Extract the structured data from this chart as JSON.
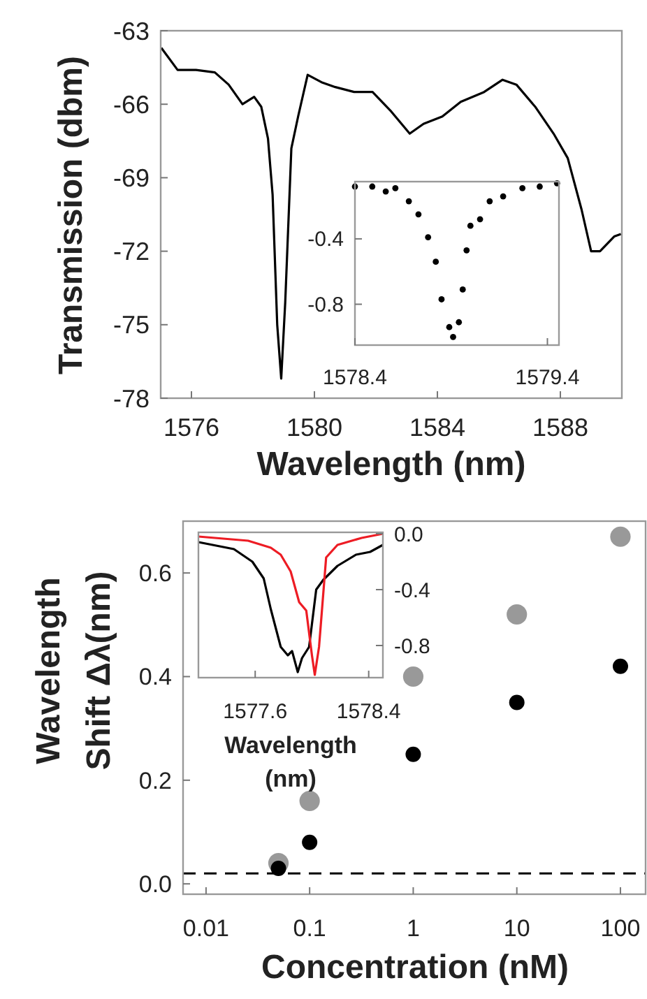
{
  "chart_data": [
    {
      "type": "line",
      "xlabel": "Wavelength (nm)",
      "ylabel": "Transmission (dbm)",
      "xlim": [
        1575,
        1590
      ],
      "ylim": [
        -78,
        -63
      ],
      "xticks": [
        1576,
        1580,
        1584,
        1588
      ],
      "yticks": [
        -63,
        -66,
        -69,
        -72,
        -75,
        -78
      ],
      "series": [
        {
          "color": "#000000",
          "x": [
            1575.02,
            1575.55,
            1576.15,
            1576.76,
            1577.21,
            1577.66,
            1578.04,
            1578.27,
            1578.49,
            1578.64,
            1578.79,
            1578.92,
            1579.05,
            1579.25,
            1579.47,
            1579.78,
            1580.23,
            1580.68,
            1581.29,
            1581.89,
            1582.5,
            1583.1,
            1583.55,
            1584.16,
            1584.76,
            1585.52,
            1586.12,
            1586.57,
            1587.18,
            1587.78,
            1588.24,
            1588.69,
            1589.0,
            1589.29,
            1589.75,
            1589.97
          ],
          "values": [
            -63.7,
            -64.6,
            -64.6,
            -64.7,
            -65.2,
            -66.0,
            -65.7,
            -66.1,
            -67.4,
            -69.7,
            -75.0,
            -77.2,
            -74.1,
            -67.8,
            -66.5,
            -64.8,
            -65.1,
            -65.3,
            -65.5,
            -65.5,
            -66.3,
            -67.2,
            -66.8,
            -66.5,
            -65.9,
            -65.5,
            -65.0,
            -65.2,
            -66.1,
            -67.2,
            -68.2,
            -70.3,
            -72.0,
            -72.0,
            -71.4,
            -71.3
          ]
        }
      ]
    },
    {
      "type": "scatter",
      "marker": "circle",
      "xlim": [
        1578.4,
        1579.46
      ],
      "ylim": [
        -1.05,
        -0.05
      ],
      "xticks": [
        1578.4,
        1579.4
      ],
      "yticks": [
        -0.4,
        -0.8
      ],
      "series": [
        {
          "color": "#000000",
          "x": [
            1578.4,
            1578.49,
            1578.56,
            1578.61,
            1578.68,
            1578.73,
            1578.78,
            1578.82,
            1578.85,
            1578.89,
            1578.91,
            1578.94,
            1578.96,
            1578.98,
            1579.0,
            1579.05,
            1579.1,
            1579.17,
            1579.27,
            1579.36,
            1579.45
          ],
          "values": [
            -0.08,
            -0.08,
            -0.11,
            -0.09,
            -0.17,
            -0.25,
            -0.39,
            -0.54,
            -0.77,
            -0.94,
            -1.0,
            -0.91,
            -0.71,
            -0.47,
            -0.32,
            -0.28,
            -0.17,
            -0.14,
            -0.09,
            -0.08,
            -0.06
          ]
        }
      ]
    },
    {
      "type": "scatter",
      "marker": "circle",
      "log": "x",
      "xlabel": "Concentration (nM)",
      "ylabel": "Wavelength Shift Δλ(nm)",
      "xlim": [
        0.006,
        175
      ],
      "ylim": [
        -0.02,
        0.7
      ],
      "xticks": [
        0.01,
        0.1,
        1,
        10,
        100
      ],
      "yticks": [
        {
          "value": 0,
          "label": "0.0"
        },
        0.2,
        0.4,
        0.6
      ],
      "ref_lines": [
        {
          "axis": "y",
          "value": 0.02,
          "line_style": "dashed",
          "color": "#000000"
        }
      ],
      "series": [
        {
          "color": "#999999",
          "x": [
            0.05,
            0.1,
            1,
            10,
            100
          ],
          "values": [
            0.04,
            0.16,
            0.4,
            0.52,
            0.67
          ]
        },
        {
          "color": "#000000",
          "x": [
            0.05,
            0.1,
            1,
            10,
            100
          ],
          "values": [
            0.03,
            0.08,
            0.25,
            0.35,
            0.42
          ]
        }
      ]
    },
    {
      "type": "line",
      "xlabel": "Wavelength (nm)",
      "xlim": [
        1577.2,
        1578.5
      ],
      "y2lim": [
        -1.03,
        0.01
      ],
      "xticks": [
        1577.6,
        1578.4
      ],
      "y2ticks": [
        {
          "value": 0,
          "label": "0.0"
        },
        -0.4,
        -0.8
      ],
      "series": [
        {
          "color": "#000000",
          "axis": "y2",
          "x": [
            1577.2,
            1577.45,
            1577.58,
            1577.66,
            1577.71,
            1577.78,
            1577.83,
            1577.86,
            1577.9,
            1577.93,
            1577.98,
            1578.03,
            1578.08,
            1578.18,
            1578.31,
            1578.41,
            1578.5
          ],
          "values": [
            -0.06,
            -0.11,
            -0.2,
            -0.32,
            -0.54,
            -0.81,
            -0.87,
            -0.84,
            -0.99,
            -0.89,
            -0.81,
            -0.4,
            -0.33,
            -0.23,
            -0.15,
            -0.13,
            -0.08
          ]
        },
        {
          "color": "#ed1c24",
          "axis": "y2",
          "x": [
            1577.2,
            1577.55,
            1577.71,
            1577.78,
            1577.85,
            1577.91,
            1577.96,
            1578.0,
            1578.02,
            1578.05,
            1578.1,
            1578.18,
            1578.35,
            1578.5
          ],
          "values": [
            -0.02,
            -0.05,
            -0.1,
            -0.15,
            -0.27,
            -0.49,
            -0.55,
            -0.87,
            -1.01,
            -0.81,
            -0.17,
            -0.08,
            -0.03,
            0.0
          ]
        }
      ]
    }
  ]
}
